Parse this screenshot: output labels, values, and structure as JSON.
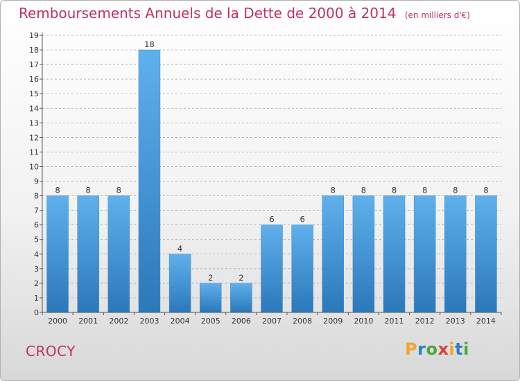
{
  "header": {
    "title": "Remboursements Annuels de la Dette de 2000 à 2014",
    "unit": "(en milliers d'€)"
  },
  "footer": {
    "place": "CROCY",
    "logo_letters": [
      "P",
      "r",
      "o",
      "x",
      "i",
      "t",
      "i"
    ],
    "logo_colors": [
      "#f2a531",
      "#2a7fc9",
      "#4aa83c",
      "#d93f3f",
      "#f2a531",
      "#2a7fc9",
      "#4aa83c"
    ]
  },
  "colors": {
    "title": "#c0306a",
    "bar_light": "#5fb0ec",
    "bar_dark": "#2b78ba",
    "grid": "#9aa0a6"
  },
  "chart_data": {
    "type": "bar",
    "title": "Remboursements Annuels de la Dette de 2000 à 2014",
    "subtitle": "(en milliers d'€)",
    "categories": [
      "2000",
      "2001",
      "2002",
      "2003",
      "2004",
      "2005",
      "2006",
      "2007",
      "2008",
      "2009",
      "2010",
      "2011",
      "2012",
      "2013",
      "2014"
    ],
    "values": [
      8,
      8,
      8,
      18,
      4,
      2,
      2,
      6,
      6,
      8,
      8,
      8,
      8,
      8,
      8
    ],
    "ylim": [
      0,
      19
    ],
    "yticks": [
      0,
      1,
      2,
      3,
      4,
      5,
      6,
      7,
      8,
      9,
      10,
      11,
      12,
      13,
      14,
      15,
      16,
      17,
      18,
      19
    ],
    "grid": "horizontal dashed",
    "xlabel": "",
    "ylabel": ""
  }
}
